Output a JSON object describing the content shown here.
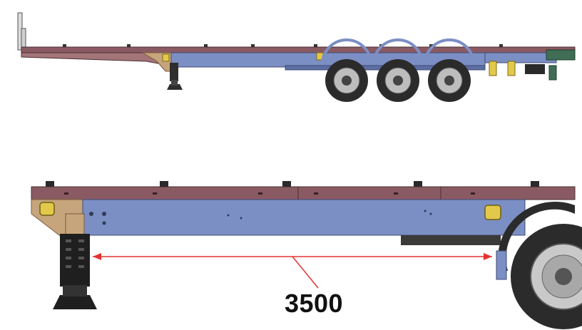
{
  "dimension": {
    "value": "3500"
  },
  "colors": {
    "deck": "#8a5a62",
    "deck_dark": "#6d4249",
    "frame": "#7c8fc4",
    "frame_dark": "#5d6ea3",
    "tan": "#c7a57c",
    "yellow": "#e3c94a",
    "tyre": "#2b2b2b",
    "rim": "#bdbdbd",
    "dimension_line": "#e53232"
  }
}
